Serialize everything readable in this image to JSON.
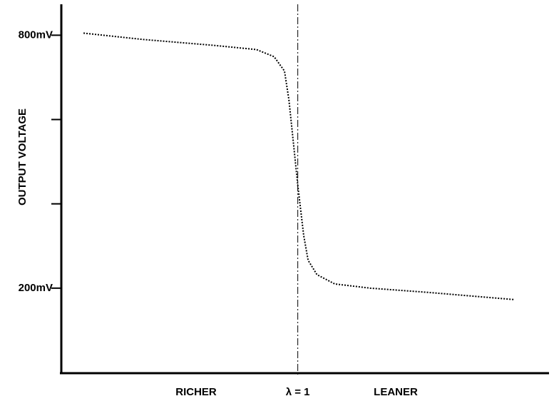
{
  "chart_data": {
    "type": "line",
    "y_label": "OUTPUT VOLTAGE",
    "x": [
      0.855,
      0.895,
      0.943,
      0.972,
      0.984,
      0.991,
      0.994,
      0.997,
      1.0,
      1.004,
      1.007,
      1.013,
      1.025,
      1.049,
      1.088,
      1.146
    ],
    "series": [
      {
        "color": "#000000",
        "values": [
          805,
          790,
          776,
          766,
          749,
          715,
          647,
          546,
          444,
          325,
          266,
          232,
          210,
          200,
          190,
          173
        ]
      }
    ],
    "xlim": [
      0.84,
      1.17
    ],
    "ylim": [
      0,
      870
    ],
    "yticks": [
      {
        "value": 200,
        "label": "200mV"
      },
      {
        "value": 400,
        "label": null
      },
      {
        "value": 600,
        "label": null
      },
      {
        "value": 800,
        "label": "800mV"
      }
    ],
    "reference_line": {
      "value": 1,
      "label": "λ = 1"
    },
    "x_left_label": "RICHER",
    "x_right_label": "LEANER"
  }
}
